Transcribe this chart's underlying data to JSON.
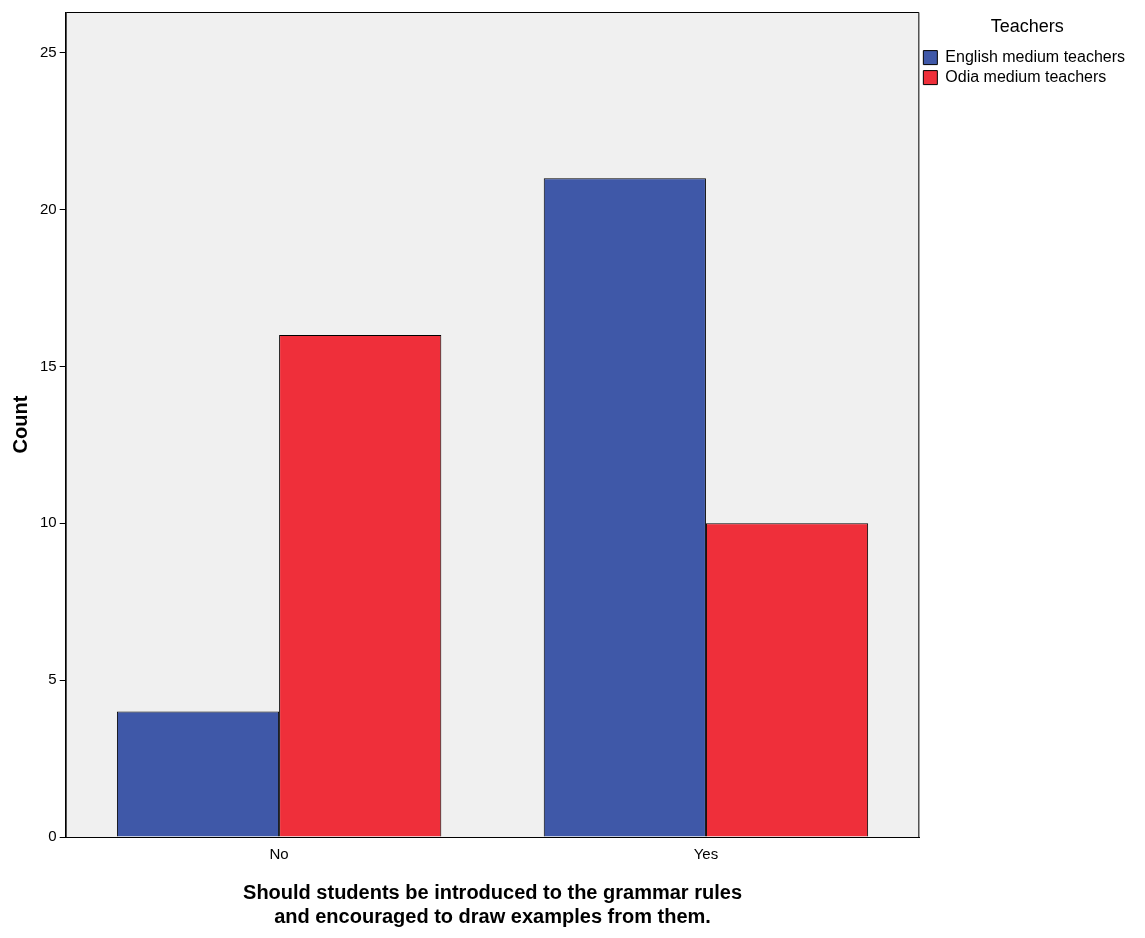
{
  "chart_data": {
    "type": "bar",
    "xlabel": "Should students be introduced to the grammar rules\nand encouraged to draw examples from them.",
    "ylabel": "Count",
    "legend_title": "Teachers",
    "categories": [
      "No",
      "Yes"
    ],
    "series": [
      {
        "name": "English medium teachers",
        "color": "#3f58a8",
        "values": [
          4,
          21
        ]
      },
      {
        "name": "Odia medium teachers",
        "color": "#ef2f3a",
        "values": [
          16,
          10
        ]
      }
    ],
    "ylim": [
      0,
      26.3
    ],
    "yticks": [
      0,
      5,
      10,
      15,
      20,
      25
    ],
    "grid": false,
    "legend": "top right"
  }
}
